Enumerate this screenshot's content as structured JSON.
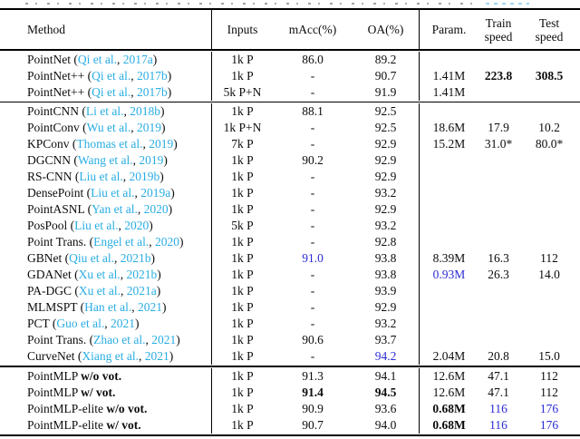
{
  "colors": {
    "citation_cyan": "#29ade3",
    "highlight_blue": "#2b2bd5",
    "text": "#0c0c0c",
    "rule": "#000000"
  },
  "header": {
    "method": "Method",
    "inputs": "Inputs",
    "macc": "mAcc(%)",
    "oa": "OA(%)",
    "param": "Param.",
    "train_line1": "Train",
    "train_line2": "speed",
    "test_line1": "Test",
    "test_line2": "speed"
  },
  "blocks": [
    {
      "rows": [
        {
          "method": {
            "name": "PointNet",
            "cite": "Qi et al.",
            "year": "2017a"
          },
          "inputs": "1k P",
          "macc": "86.0",
          "oa": "89.2",
          "param": "",
          "train": "",
          "test": "",
          "styles": {}
        },
        {
          "method": {
            "name": "PointNet++",
            "cite": "Qi et al.",
            "year": "2017b"
          },
          "inputs": "1k P",
          "macc": "-",
          "oa": "90.7",
          "param": "1.41M",
          "train": "223.8",
          "test": "308.5",
          "styles": {
            "train": "bold",
            "test": "bold"
          }
        },
        {
          "method": {
            "name": "PointNet++",
            "cite": "Qi et al.",
            "year": "2017b"
          },
          "inputs": "5k P+N",
          "macc": "-",
          "oa": "91.9",
          "param": "1.41M",
          "train": "",
          "test": "",
          "styles": {}
        }
      ]
    },
    {
      "rows": [
        {
          "method": {
            "name": "PointCNN",
            "cite": "Li et al.",
            "year": "2018b"
          },
          "inputs": "1k P",
          "macc": "88.1",
          "oa": "92.5",
          "param": "",
          "train": "",
          "test": "",
          "styles": {}
        },
        {
          "method": {
            "name": "PointConv",
            "cite": "Wu et al.",
            "year": "2019"
          },
          "inputs": "1k P+N",
          "macc": "-",
          "oa": "92.5",
          "param": "18.6M",
          "train": "17.9",
          "test": "10.2",
          "styles": {}
        },
        {
          "method": {
            "name": "KPConv",
            "cite": "Thomas et al.",
            "year": "2019"
          },
          "inputs": "7k P",
          "macc": "-",
          "oa": "92.9",
          "param": "15.2M",
          "train": "31.0*",
          "test": "80.0*",
          "styles": {}
        },
        {
          "method": {
            "name": "DGCNN",
            "cite": "Wang et al.",
            "year": "2019"
          },
          "inputs": "1k P",
          "macc": "90.2",
          "oa": "92.9",
          "param": "",
          "train": "",
          "test": "",
          "styles": {}
        },
        {
          "method": {
            "name": "RS-CNN",
            "cite": "Liu et al.",
            "year": "2019b"
          },
          "inputs": "1k P",
          "macc": "-",
          "oa": "92.9",
          "param": "",
          "train": "",
          "test": "",
          "styles": {}
        },
        {
          "method": {
            "name": "DensePoint",
            "cite": "Liu et al.",
            "year": "2019a"
          },
          "inputs": "1k P",
          "macc": "-",
          "oa": "93.2",
          "param": "",
          "train": "",
          "test": "",
          "styles": {}
        },
        {
          "method": {
            "name": "PointASNL",
            "cite": "Yan et al.",
            "year": "2020"
          },
          "inputs": "1k P",
          "macc": "-",
          "oa": "92.9",
          "param": "",
          "train": "",
          "test": "",
          "styles": {}
        },
        {
          "method": {
            "name": "PosPool",
            "cite": "Liu et al.",
            "year": "2020"
          },
          "inputs": "5k P",
          "macc": "-",
          "oa": "93.2",
          "param": "",
          "train": "",
          "test": "",
          "styles": {}
        },
        {
          "method": {
            "name": "Point Trans.",
            "cite": "Engel et al.",
            "year": "2020"
          },
          "inputs": "1k P",
          "macc": "-",
          "oa": "92.8",
          "param": "",
          "train": "",
          "test": "",
          "styles": {}
        },
        {
          "method": {
            "name": "GBNet",
            "cite": "Qiu et al.",
            "year": "2021b"
          },
          "inputs": "1k P",
          "macc": "91.0",
          "oa": "93.8",
          "param": "8.39M",
          "train": "16.3",
          "test": "112",
          "styles": {
            "macc": "blue"
          }
        },
        {
          "method": {
            "name": "GDANet",
            "cite": "Xu et al.",
            "year": "2021b"
          },
          "inputs": "1k P",
          "macc": "-",
          "oa": "93.8",
          "param": "0.93M",
          "train": "26.3",
          "test": "14.0",
          "styles": {
            "param": "blue"
          }
        },
        {
          "method": {
            "name": "PA-DGC",
            "cite": "Xu et al.",
            "year": "2021a"
          },
          "inputs": "1k P",
          "macc": "-",
          "oa": "93.9",
          "param": "",
          "train": "",
          "test": "",
          "styles": {}
        },
        {
          "method": {
            "name": "MLMSPT",
            "cite": "Han et al.",
            "year": "2021"
          },
          "inputs": "1k P",
          "macc": "-",
          "oa": "92.9",
          "param": "",
          "train": "",
          "test": "",
          "styles": {}
        },
        {
          "method": {
            "name": "PCT",
            "cite": "Guo et al.",
            "year": "2021"
          },
          "inputs": "1k P",
          "macc": "-",
          "oa": "93.2",
          "param": "",
          "train": "",
          "test": "",
          "styles": {}
        },
        {
          "method": {
            "name": "Point Trans.",
            "cite": "Zhao et al.",
            "year": "2021"
          },
          "inputs": "1k P",
          "macc": "90.6",
          "oa": "93.7",
          "param": "",
          "train": "",
          "test": "",
          "styles": {}
        },
        {
          "method": {
            "name": "CurveNet",
            "cite": "Xiang et al.",
            "year": "2021"
          },
          "inputs": "1k P",
          "macc": "-",
          "oa": "94.2",
          "param": "2.04M",
          "train": "20.8",
          "test": "15.0",
          "styles": {
            "oa": "blue"
          }
        }
      ]
    },
    {
      "rows": [
        {
          "method": {
            "name": "PointMLP",
            "suffix": "w/o vot."
          },
          "inputs": "1k P",
          "macc": "91.3",
          "oa": "94.1",
          "param": "12.6M",
          "train": "47.1",
          "test": "112",
          "styles": {}
        },
        {
          "method": {
            "name": "PointMLP",
            "suffix": "w/ vot."
          },
          "inputs": "1k P",
          "macc": "91.4",
          "oa": "94.5",
          "param": "12.6M",
          "train": "47.1",
          "test": "112",
          "styles": {
            "macc": "bold",
            "oa": "bold"
          }
        },
        {
          "method": {
            "name": "PointMLP-elite",
            "suffix": "w/o vot."
          },
          "inputs": "1k P",
          "macc": "90.9",
          "oa": "93.6",
          "param": "0.68M",
          "train": "116",
          "test": "176",
          "styles": {
            "param": "bold",
            "train": "blue",
            "test": "blue"
          }
        },
        {
          "method": {
            "name": "PointMLP-elite",
            "suffix": "w/ vot."
          },
          "inputs": "1k P",
          "macc": "90.7",
          "oa": "94.0",
          "param": "0.68M",
          "train": "116",
          "test": "176",
          "styles": {
            "param": "bold",
            "train": "blue",
            "test": "blue"
          }
        }
      ]
    }
  ]
}
